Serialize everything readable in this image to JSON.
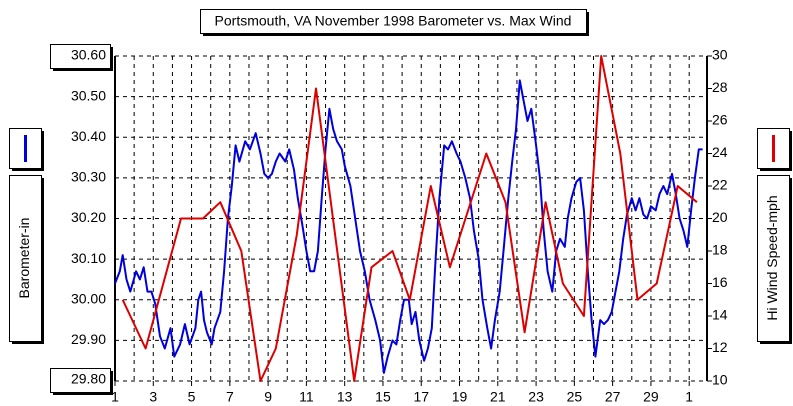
{
  "chart_data": {
    "type": "line",
    "title": "Portsmouth, VA November 1998 Barometer vs. Max Wind",
    "xlim": [
      1,
      31.93
    ],
    "xticks": [
      1,
      3,
      5,
      7,
      9,
      11,
      13,
      15,
      17,
      19,
      21,
      23,
      25,
      27,
      29,
      {
        "value": 31,
        "label": "1"
      }
    ],
    "xgrid": [
      1,
      2,
      3,
      4,
      5,
      6,
      7,
      8,
      9,
      10,
      11,
      12,
      13,
      14,
      15,
      16,
      17,
      18,
      19,
      20,
      21,
      22,
      23,
      24,
      25,
      26,
      27,
      28,
      29,
      30,
      31
    ],
    "ylim": [
      29.8,
      30.6
    ],
    "yticks": [
      {
        "value": 29.8,
        "label": "29.80"
      },
      {
        "value": 29.9,
        "label": "29.90"
      },
      {
        "value": 30.0,
        "label": "30.00"
      },
      {
        "value": 30.1,
        "label": "30.10"
      },
      {
        "value": 30.2,
        "label": "30.20"
      },
      {
        "value": 30.3,
        "label": "30.30"
      },
      {
        "value": 30.4,
        "label": "30.40"
      },
      {
        "value": 30.5,
        "label": "30.50"
      },
      {
        "value": 30.6,
        "label": "30.60"
      }
    ],
    "y2lim": [
      10,
      30
    ],
    "y2ticks": [
      10,
      12,
      14,
      16,
      18,
      20,
      22,
      24,
      26,
      28,
      30
    ],
    "grid": true,
    "series": [
      {
        "name": "Barometer-in",
        "color": "#0000dd",
        "x": [
          1.0,
          1.25,
          1.4,
          1.6,
          1.8,
          2.1,
          2.3,
          2.5,
          2.7,
          2.9,
          3.1,
          3.35,
          3.6,
          3.9,
          4.1,
          4.4,
          4.65,
          4.9,
          5.2,
          5.35,
          5.5,
          5.65,
          5.8,
          6.05,
          6.2,
          6.5,
          6.7,
          6.9,
          7.1,
          7.3,
          7.5,
          7.8,
          8.05,
          8.35,
          8.6,
          8.8,
          9.0,
          9.2,
          9.4,
          9.6,
          9.9,
          10.1,
          10.35,
          10.55,
          10.8,
          11.0,
          11.2,
          11.4,
          11.6,
          11.8,
          12.0,
          12.2,
          12.4,
          12.6,
          12.85,
          13.0,
          13.3,
          13.55,
          13.8,
          14.05,
          14.3,
          14.6,
          14.85,
          15.05,
          15.25,
          15.5,
          15.7,
          15.9,
          16.1,
          16.35,
          16.5,
          16.7,
          16.9,
          17.15,
          17.35,
          17.55,
          17.75,
          17.95,
          18.2,
          18.4,
          18.6,
          18.85,
          19.05,
          19.3,
          19.55,
          19.75,
          20.0,
          20.2,
          20.45,
          20.65,
          20.85,
          21.1,
          21.3,
          21.55,
          21.75,
          21.95,
          22.15,
          22.35,
          22.55,
          22.75,
          23.0,
          23.2,
          23.4,
          23.6,
          23.85,
          24.05,
          24.25,
          24.5,
          24.65,
          24.85,
          25.1,
          25.3,
          25.5,
          25.7,
          25.9,
          26.1,
          26.35,
          26.55,
          26.75,
          26.95,
          27.15,
          27.35,
          27.55,
          27.75,
          28.0,
          28.2,
          28.4,
          28.6,
          28.8,
          29.0,
          29.25,
          29.45,
          29.65,
          29.85,
          30.1,
          30.3,
          30.5,
          30.7,
          30.9,
          31.1,
          31.3,
          31.5,
          31.7
        ],
        "values": [
          30.04,
          30.07,
          30.11,
          30.05,
          30.02,
          30.07,
          30.05,
          30.08,
          30.02,
          30.02,
          29.99,
          29.91,
          29.88,
          29.93,
          29.86,
          29.89,
          29.94,
          29.89,
          29.93,
          30.0,
          30.02,
          29.95,
          29.92,
          29.89,
          29.93,
          29.97,
          30.07,
          30.2,
          30.28,
          30.38,
          30.34,
          30.39,
          30.37,
          30.41,
          30.36,
          30.31,
          30.3,
          30.31,
          30.34,
          30.36,
          30.34,
          30.37,
          30.32,
          30.25,
          30.18,
          30.12,
          30.07,
          30.07,
          30.12,
          30.25,
          30.37,
          30.47,
          30.42,
          30.39,
          30.37,
          30.33,
          30.28,
          30.2,
          30.12,
          30.07,
          30.0,
          29.95,
          29.9,
          29.82,
          29.86,
          29.9,
          29.89,
          29.95,
          30.0,
          30.0,
          29.94,
          29.97,
          29.9,
          29.85,
          29.88,
          29.93,
          30.1,
          30.25,
          30.38,
          30.37,
          30.39,
          30.36,
          30.34,
          30.3,
          30.25,
          30.17,
          30.1,
          30.0,
          29.93,
          29.88,
          29.95,
          30.02,
          30.12,
          30.25,
          30.34,
          30.42,
          30.54,
          30.49,
          30.44,
          30.47,
          30.38,
          30.3,
          30.17,
          30.07,
          30.02,
          30.12,
          30.15,
          30.13,
          30.2,
          30.25,
          30.29,
          30.3,
          30.22,
          30.07,
          29.95,
          29.86,
          29.95,
          29.94,
          29.95,
          29.97,
          30.02,
          30.07,
          30.15,
          30.21,
          30.25,
          30.22,
          30.25,
          30.21,
          30.2,
          30.23,
          30.22,
          30.26,
          30.28,
          30.26,
          30.31,
          30.26,
          30.2,
          30.17,
          30.13,
          30.22,
          30.3,
          30.37,
          30.37
        ]
      },
      {
        "name": "Hi Wind Speed-mph",
        "color": "#dd0000",
        "axis": "y2",
        "x": [
          1.4,
          2.6,
          4.45,
          5.6,
          6.5,
          7.6,
          8.6,
          9.4,
          10.5,
          11.5,
          13.5,
          14.4,
          15.5,
          16.4,
          17.5,
          18.5,
          20.4,
          21.4,
          22.4,
          23.5,
          24.4,
          25.5,
          26.4,
          27.4,
          28.3,
          29.3,
          30.4,
          31.4
        ],
        "values": [
          15,
          12,
          20,
          20,
          21,
          18,
          10,
          12,
          19,
          28,
          10,
          17,
          18,
          15,
          22,
          17,
          24,
          21,
          13,
          21,
          16,
          14,
          30,
          24,
          15,
          16,
          22,
          21
        ]
      }
    ]
  }
}
